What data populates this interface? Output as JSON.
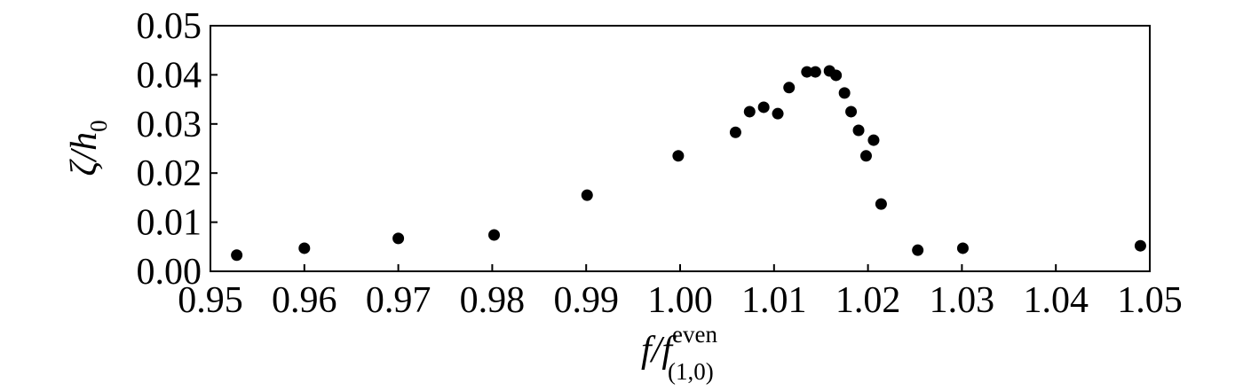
{
  "chart_data": {
    "type": "scatter",
    "xlabel": {
      "base": "f/f",
      "sup": "even",
      "sub": "(1,0)"
    },
    "ylabel": {
      "base": "ζ/h",
      "sub": "0"
    },
    "color": "#000000",
    "x": [
      0.9528,
      0.96,
      0.97,
      0.9802,
      0.9901,
      0.9998,
      1.0059,
      1.0074,
      1.0089,
      1.0104,
      1.0116,
      1.0135,
      1.0144,
      1.0159,
      1.0166,
      1.0175,
      1.0182,
      1.019,
      1.0198,
      1.0206,
      1.0214,
      1.0253,
      1.0301,
      1.049
    ],
    "values": [
      0.0033,
      0.0047,
      0.0067,
      0.0074,
      0.0155,
      0.0235,
      0.0283,
      0.0325,
      0.0334,
      0.0321,
      0.0374,
      0.0406,
      0.0406,
      0.0408,
      0.0399,
      0.0363,
      0.0325,
      0.0287,
      0.0235,
      0.0267,
      0.0137,
      0.0043,
      0.0047,
      0.0052
    ],
    "xlim": [
      0.95,
      1.05
    ],
    "xticks": [
      0.95,
      0.96,
      0.97,
      0.98,
      0.99,
      {
        "value": 1,
        "label": "1.00"
      },
      1.01,
      1.02,
      1.03,
      1.04,
      1.05
    ],
    "ylim": [
      0,
      0.05
    ],
    "yticks": [
      {
        "value": 0,
        "label": "0.00"
      },
      0.01,
      0.02,
      0.03,
      0.04,
      0.05
    ]
  }
}
